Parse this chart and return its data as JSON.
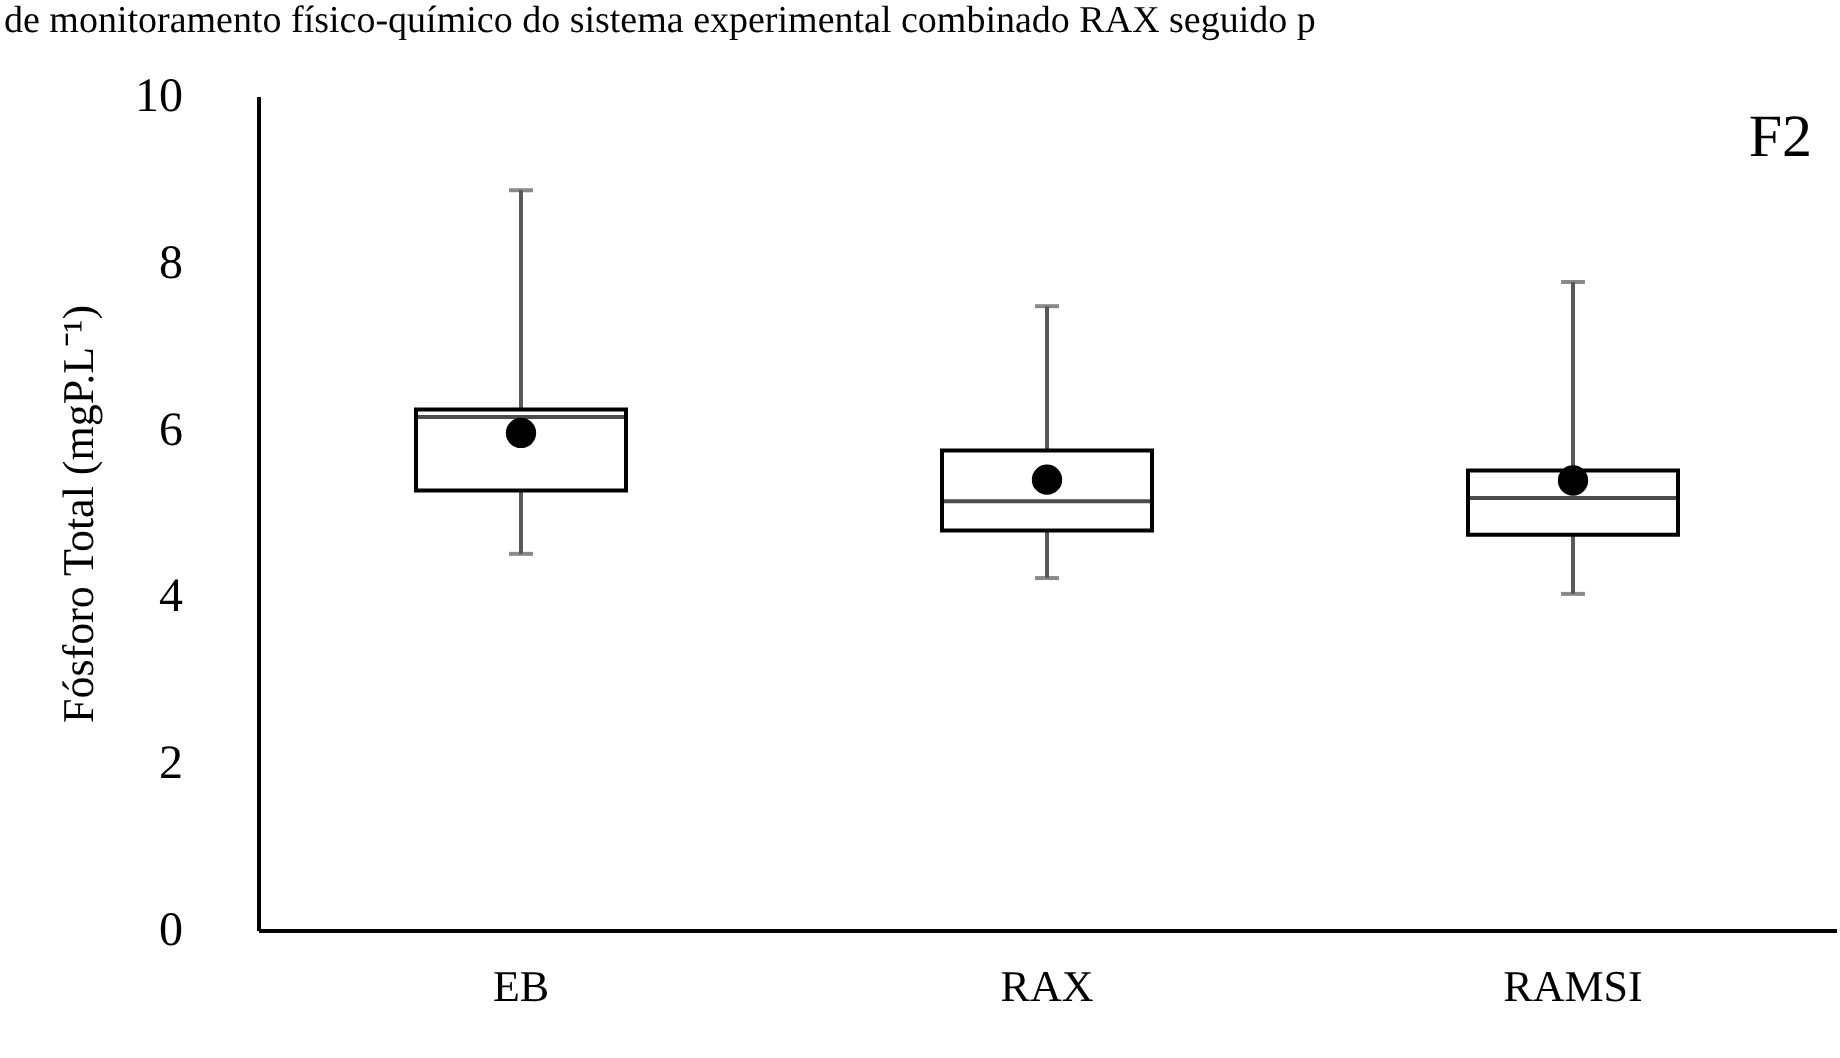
{
  "chart_data": {
    "type": "box",
    "ylabel": "Fósforo Total (mgP.L⁻¹)",
    "categories": [
      "EB",
      "RAX",
      "RAMSI"
    ],
    "boxes": [
      {
        "low": 4.51,
        "q1": 5.27,
        "median": 6.15,
        "q3": 6.24,
        "high": 8.87,
        "mean": 5.96
      },
      {
        "low": 4.22,
        "q1": 4.79,
        "median": 5.14,
        "q3": 5.75,
        "high": 7.48,
        "mean": 5.4
      },
      {
        "low": 4.03,
        "q1": 4.74,
        "median": 5.18,
        "q3": 5.51,
        "high": 7.77,
        "mean": 5.39
      }
    ],
    "ylim": [
      0,
      10
    ],
    "yticks": [
      0,
      2,
      4,
      6,
      8,
      10
    ],
    "annotations": [
      "de monitoramento físico-químico do sistema experimental combinado RAX seguido p",
      "F2"
    ]
  }
}
